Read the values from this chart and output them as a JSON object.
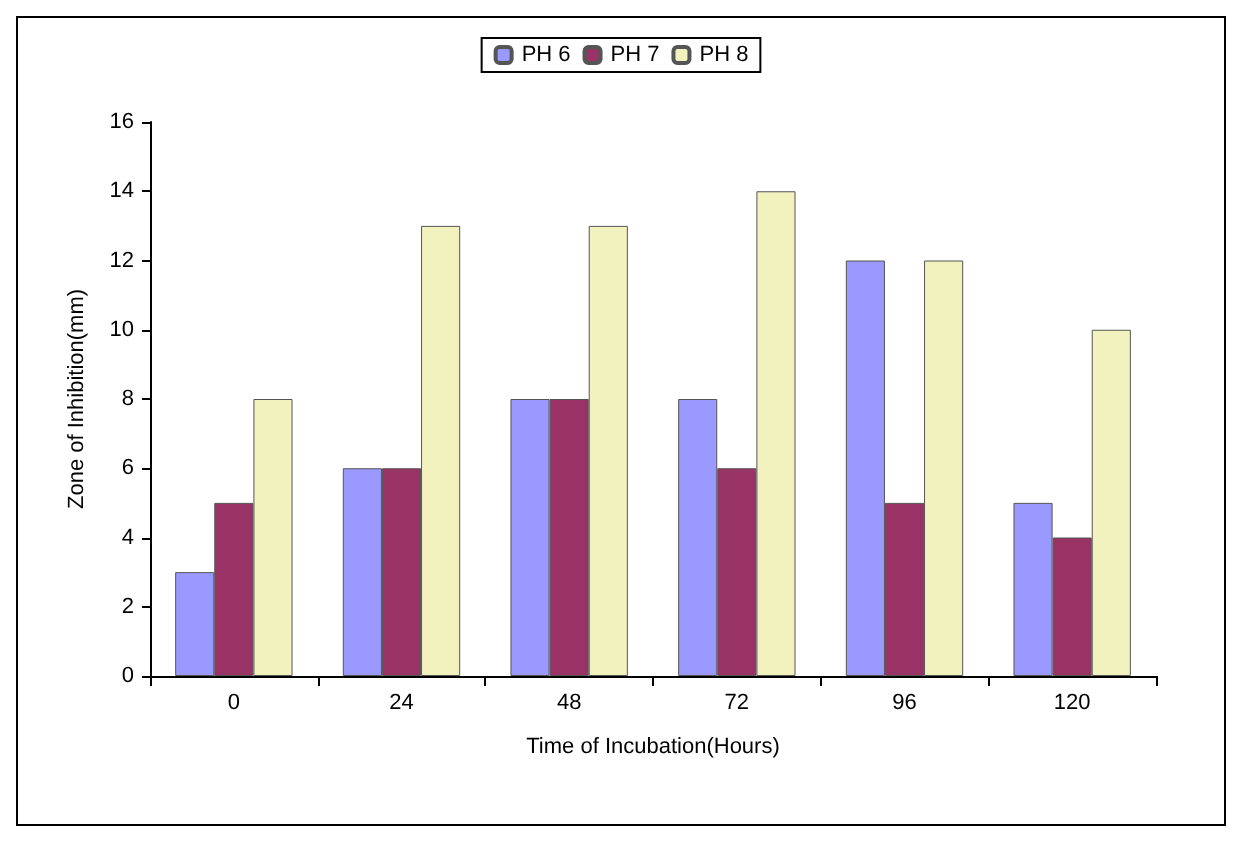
{
  "chart_data": {
    "type": "bar",
    "xlabel": "Time of Incubation(Hours)",
    "ylabel": "Zone of Inhibition(mm)",
    "categories": [
      "0",
      "24",
      "48",
      "72",
      "96",
      "120"
    ],
    "series": [
      {
        "name": "PH 6",
        "color": "#9999ff",
        "values": [
          3,
          6,
          8,
          8,
          12,
          5
        ]
      },
      {
        "name": "PH 7",
        "color": "#993366",
        "values": [
          5,
          6,
          8,
          6,
          5,
          4
        ]
      },
      {
        "name": "PH 8",
        "color": "#f2f2bf",
        "values": [
          8,
          13,
          13,
          14,
          12,
          10
        ]
      }
    ],
    "ylim": [
      0,
      16
    ],
    "yticks": [
      0,
      2,
      4,
      6,
      8,
      10,
      12,
      14,
      16
    ],
    "grid": false,
    "legend": "top"
  }
}
